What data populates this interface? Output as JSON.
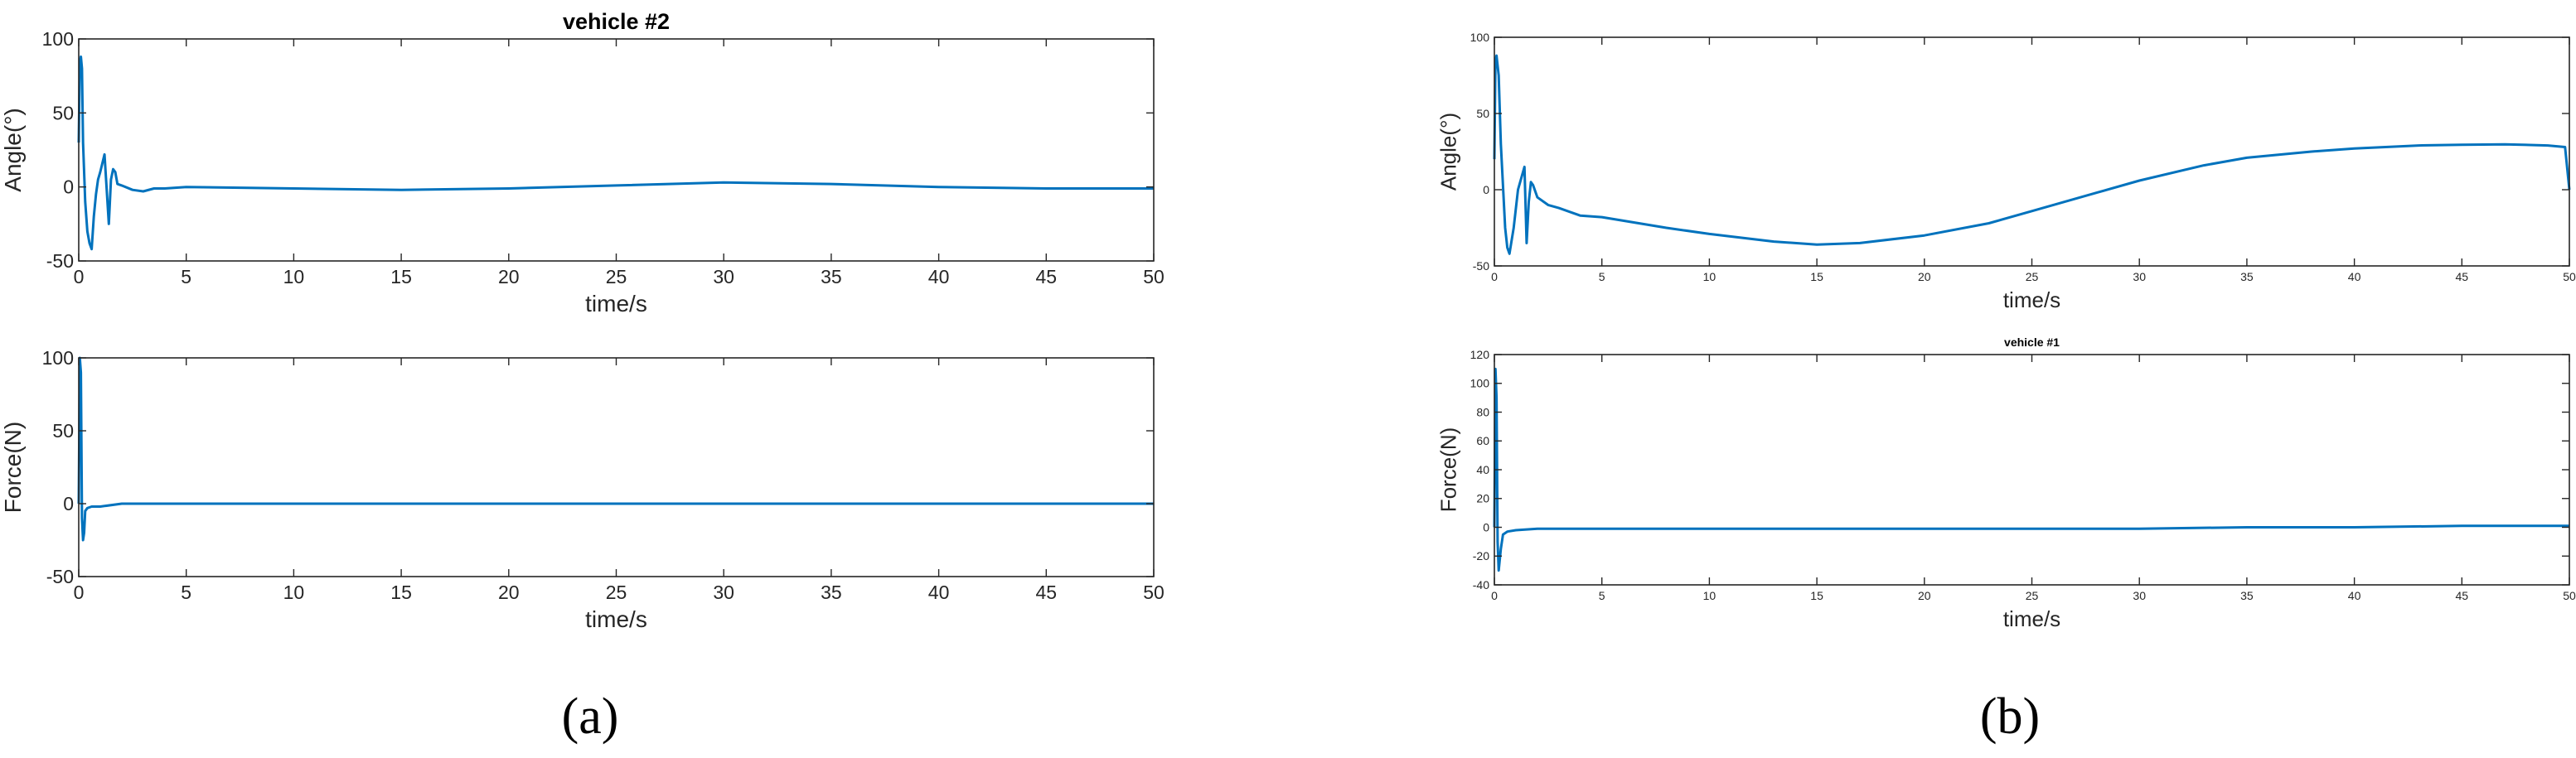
{
  "panels": [
    {
      "caption": "(a)"
    },
    {
      "caption": "(b)"
    }
  ],
  "chart_data": [
    {
      "type": "line",
      "panel": "a",
      "title": "vehicle #2",
      "xlabel": "time/s",
      "ylabel": "Angle(°)",
      "xlim": [
        0,
        50
      ],
      "ylim": [
        -50,
        100
      ],
      "xticks": [
        0,
        5,
        10,
        15,
        20,
        25,
        30,
        35,
        40,
        45,
        50
      ],
      "yticks": [
        -50,
        0,
        50,
        100
      ],
      "grid": false,
      "color": "#0072BD",
      "series": [
        {
          "x": [
            0,
            0.05,
            0.1,
            0.15,
            0.2,
            0.3,
            0.4,
            0.5,
            0.6,
            0.7,
            0.8,
            0.9,
            1.0,
            1.2,
            1.4,
            1.45,
            1.5,
            1.6,
            1.7,
            1.8,
            2.0,
            2.5,
            3.0,
            3.5,
            4.0,
            5,
            10,
            15,
            20,
            25,
            30,
            35,
            40,
            45,
            50
          ],
          "y": [
            30,
            85,
            88,
            80,
            30,
            -10,
            -30,
            -38,
            -42,
            -20,
            -5,
            5,
            10,
            22,
            -25,
            -10,
            5,
            12,
            10,
            2,
            1,
            -2,
            -3,
            -1,
            -1,
            0,
            -1,
            -2,
            -1,
            1,
            3,
            2,
            0,
            -1,
            -1
          ]
        }
      ]
    },
    {
      "type": "line",
      "panel": "a",
      "xlabel": "time/s",
      "ylabel": "Force(N)",
      "xlim": [
        0,
        50
      ],
      "ylim": [
        -50,
        100
      ],
      "xticks": [
        0,
        5,
        10,
        15,
        20,
        25,
        30,
        35,
        40,
        45,
        50
      ],
      "yticks": [
        -50,
        0,
        50,
        100
      ],
      "grid": false,
      "color": "#0072BD",
      "series": [
        {
          "x": [
            0,
            0.05,
            0.1,
            0.15,
            0.2,
            0.25,
            0.3,
            0.4,
            0.6,
            1.0,
            2.0,
            3.0,
            5,
            10,
            20,
            30,
            40,
            50
          ],
          "y": [
            0,
            100,
            90,
            -10,
            -25,
            -20,
            -5,
            -3,
            -2,
            -2,
            0,
            0,
            0,
            0,
            0,
            0,
            0,
            0
          ]
        }
      ]
    },
    {
      "type": "line",
      "panel": "b",
      "xlabel": "time/s",
      "ylabel": "Angle(°)",
      "xlim": [
        0,
        50
      ],
      "ylim": [
        -50,
        100
      ],
      "xticks": [
        0,
        5,
        10,
        15,
        20,
        25,
        30,
        35,
        40,
        45,
        50
      ],
      "yticks": [
        -50,
        0,
        50,
        100
      ],
      "grid": false,
      "color": "#0072BD",
      "series": [
        {
          "x": [
            0,
            0.05,
            0.1,
            0.2,
            0.3,
            0.5,
            0.6,
            0.7,
            0.9,
            1.1,
            1.4,
            1.5,
            1.6,
            1.7,
            1.8,
            2.0,
            2.5,
            3.0,
            4.0,
            5,
            8,
            10,
            13,
            15,
            17,
            20,
            23,
            25,
            28,
            30,
            33,
            35,
            38,
            40,
            43,
            45,
            47,
            49,
            49.8,
            50
          ],
          "y": [
            20,
            85,
            88,
            75,
            30,
            -25,
            -38,
            -42,
            -25,
            0,
            15,
            -35,
            -8,
            5,
            3,
            -5,
            -10,
            -12,
            -17,
            -18,
            -25,
            -29,
            -34,
            -36,
            -35,
            -30,
            -22,
            -14,
            -2,
            6,
            16,
            21,
            25,
            27,
            29,
            29.5,
            29.8,
            29,
            28,
            0
          ]
        }
      ]
    },
    {
      "type": "line",
      "panel": "b",
      "title": "vehicle #1",
      "xlabel": "time/s",
      "ylabel": "Force(N)",
      "xlim": [
        0,
        50
      ],
      "ylim": [
        -40,
        120
      ],
      "xticks": [
        0,
        5,
        10,
        15,
        20,
        25,
        30,
        35,
        40,
        45,
        50
      ],
      "yticks": [
        -40,
        -20,
        0,
        20,
        40,
        60,
        80,
        100,
        120
      ],
      "grid": false,
      "color": "#0072BD",
      "series": [
        {
          "x": [
            0,
            0.05,
            0.1,
            0.15,
            0.2,
            0.3,
            0.4,
            0.6,
            1.0,
            2.0,
            5,
            10,
            15,
            20,
            25,
            30,
            35,
            40,
            45,
            50
          ],
          "y": [
            0,
            110,
            90,
            -10,
            -30,
            -15,
            -5,
            -3,
            -2,
            -1,
            -1,
            -1,
            -1,
            -1,
            -1,
            -1,
            0,
            0,
            1,
            1
          ]
        }
      ]
    }
  ]
}
